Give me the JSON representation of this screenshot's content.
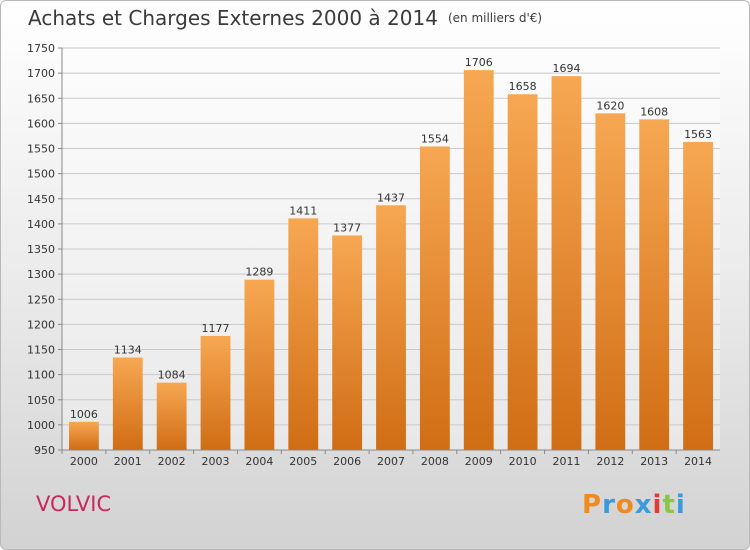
{
  "header": {
    "title": "Achats et Charges Externes 2000 à 2014",
    "unit": "(en milliers d'€)"
  },
  "footer": {
    "city": "VOLVIC",
    "logo_text": "Proxiti"
  },
  "colors": {
    "bar_light": "#f7a752",
    "bar_dark": "#d06d14",
    "city": "#c8285c",
    "logo": [
      "#f08a1e",
      "#3b9ad9",
      "#f08a1e",
      "#3b9ad9",
      "#e43a2f",
      "#8cc63f",
      "#3b9ad9"
    ]
  },
  "chart_data": {
    "type": "bar",
    "categories": [
      "2000",
      "2001",
      "2002",
      "2003",
      "2004",
      "2005",
      "2006",
      "2007",
      "2008",
      "2009",
      "2010",
      "2011",
      "2012",
      "2013",
      "2014"
    ],
    "values": [
      1006,
      1134,
      1084,
      1177,
      1289,
      1411,
      1377,
      1437,
      1554,
      1706,
      1658,
      1694,
      1620,
      1608,
      1563
    ],
    "ylim": [
      950,
      1750
    ],
    "yticks": [
      950,
      1000,
      1050,
      1100,
      1150,
      1200,
      1250,
      1300,
      1350,
      1400,
      1450,
      1500,
      1550,
      1600,
      1650,
      1700,
      1750
    ],
    "grid": true
  }
}
